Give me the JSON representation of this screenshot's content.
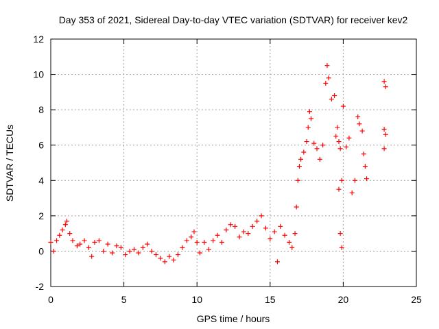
{
  "chart_data": {
    "type": "scatter",
    "title": "Day 353 of 2021, Sidereal Day-to-day VTEC variation (SDTVAR) for receiver kev2",
    "xlabel": "GPS time / hours",
    "ylabel": "SDTVAR / TECUs",
    "xlim": [
      0,
      25
    ],
    "ylim": [
      -2,
      12
    ],
    "xticks": [
      "0",
      "5",
      "10",
      "15",
      "20",
      "25"
    ],
    "yticks": [
      "-2",
      "0",
      "2",
      "4",
      "6",
      "8",
      "10",
      "12"
    ],
    "grid": true,
    "marker": "+",
    "color": "#ff0000",
    "series": [
      {
        "name": "SDTVAR",
        "points": [
          [
            0.0,
            0.5
          ],
          [
            0.2,
            0.0
          ],
          [
            0.4,
            0.6
          ],
          [
            0.6,
            0.9
          ],
          [
            0.8,
            1.2
          ],
          [
            1.0,
            1.5
          ],
          [
            1.1,
            1.7
          ],
          [
            1.3,
            1.0
          ],
          [
            1.5,
            0.6
          ],
          [
            1.8,
            0.3
          ],
          [
            2.0,
            0.4
          ],
          [
            2.3,
            0.6
          ],
          [
            2.6,
            0.2
          ],
          [
            2.8,
            -0.3
          ],
          [
            3.0,
            0.5
          ],
          [
            3.3,
            0.6
          ],
          [
            3.6,
            0.0
          ],
          [
            3.9,
            0.4
          ],
          [
            4.2,
            -0.1
          ],
          [
            4.5,
            0.3
          ],
          [
            4.8,
            0.2
          ],
          [
            5.1,
            -0.2
          ],
          [
            5.4,
            0.0
          ],
          [
            5.7,
            0.1
          ],
          [
            6.0,
            -0.1
          ],
          [
            6.3,
            0.2
          ],
          [
            6.6,
            0.4
          ],
          [
            6.9,
            0.0
          ],
          [
            7.2,
            -0.2
          ],
          [
            7.5,
            -0.4
          ],
          [
            7.8,
            -0.6
          ],
          [
            8.1,
            -0.3
          ],
          [
            8.4,
            -0.5
          ],
          [
            8.7,
            -0.2
          ],
          [
            9.0,
            0.2
          ],
          [
            9.3,
            0.6
          ],
          [
            9.6,
            0.8
          ],
          [
            9.8,
            1.1
          ],
          [
            10.0,
            0.5
          ],
          [
            10.2,
            -0.1
          ],
          [
            10.5,
            0.5
          ],
          [
            10.8,
            0.1
          ],
          [
            11.1,
            0.6
          ],
          [
            11.4,
            0.9
          ],
          [
            11.7,
            0.5
          ],
          [
            12.0,
            1.2
          ],
          [
            12.3,
            1.5
          ],
          [
            12.6,
            1.4
          ],
          [
            12.9,
            0.8
          ],
          [
            13.2,
            1.1
          ],
          [
            13.5,
            1.0
          ],
          [
            13.8,
            1.4
          ],
          [
            14.1,
            1.7
          ],
          [
            14.4,
            2.0
          ],
          [
            14.7,
            1.3
          ],
          [
            15.0,
            0.7
          ],
          [
            15.3,
            1.1
          ],
          [
            15.5,
            -0.6
          ],
          [
            15.7,
            1.4
          ],
          [
            16.0,
            0.9
          ],
          [
            16.3,
            0.5
          ],
          [
            16.5,
            0.2
          ],
          [
            16.7,
            1.0
          ],
          [
            16.8,
            2.5
          ],
          [
            16.9,
            4.0
          ],
          [
            17.0,
            4.8
          ],
          [
            17.1,
            5.2
          ],
          [
            17.3,
            5.6
          ],
          [
            17.5,
            6.2
          ],
          [
            17.6,
            7.0
          ],
          [
            17.7,
            7.9
          ],
          [
            17.8,
            7.5
          ],
          [
            18.0,
            6.1
          ],
          [
            18.2,
            5.8
          ],
          [
            18.4,
            5.2
          ],
          [
            18.6,
            6.0
          ],
          [
            18.8,
            9.5
          ],
          [
            18.9,
            10.5
          ],
          [
            19.0,
            9.8
          ],
          [
            19.2,
            8.6
          ],
          [
            19.4,
            8.8
          ],
          [
            19.5,
            6.5
          ],
          [
            19.6,
            7.0
          ],
          [
            19.7,
            6.2
          ],
          [
            19.8,
            5.8
          ],
          [
            19.9,
            4.0
          ],
          [
            20.0,
            8.2
          ],
          [
            20.2,
            5.9
          ],
          [
            20.4,
            6.4
          ],
          [
            20.6,
            3.3
          ],
          [
            20.8,
            4.0
          ],
          [
            21.0,
            7.6
          ],
          [
            21.1,
            7.2
          ],
          [
            21.3,
            6.8
          ],
          [
            21.4,
            5.5
          ],
          [
            21.5,
            4.8
          ],
          [
            21.6,
            4.1
          ],
          [
            22.8,
            9.6
          ],
          [
            22.9,
            9.3
          ],
          [
            22.8,
            6.9
          ],
          [
            22.9,
            6.6
          ],
          [
            22.8,
            5.8
          ],
          [
            19.8,
            1.0
          ],
          [
            19.9,
            0.2
          ],
          [
            19.7,
            3.5
          ]
        ]
      }
    ]
  }
}
